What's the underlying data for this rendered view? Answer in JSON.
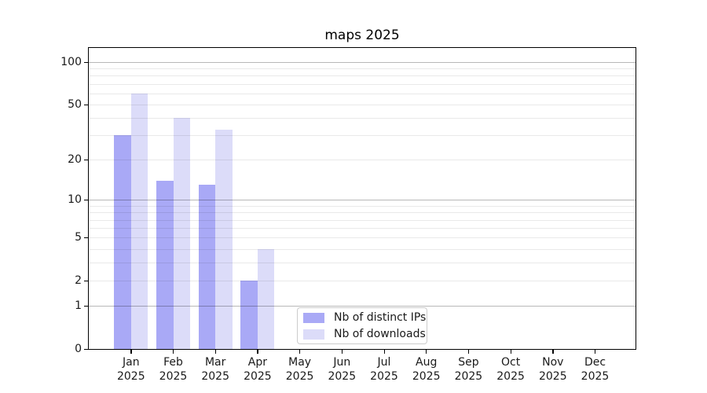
{
  "title": "maps 2025",
  "chart_data": {
    "type": "bar",
    "title": "maps 2025",
    "categories": [
      "Jan 2025",
      "Feb 2025",
      "Mar 2025",
      "Apr 2025",
      "May 2025",
      "Jun 2025",
      "Jul 2025",
      "Aug 2025",
      "Sep 2025",
      "Oct 2025",
      "Nov 2025",
      "Dec 2025"
    ],
    "months": [
      "Jan",
      "Feb",
      "Mar",
      "Apr",
      "May",
      "Jun",
      "Jul",
      "Aug",
      "Sep",
      "Oct",
      "Nov",
      "Dec"
    ],
    "year_label": "2025",
    "series": [
      {
        "name": "Nb of distinct IPs",
        "color": "#a9a9f6",
        "values": [
          30,
          14,
          13,
          2,
          0,
          0,
          0,
          0,
          0,
          0,
          0,
          0
        ]
      },
      {
        "name": "Nb of downloads",
        "color": "#dcdcf9",
        "values": [
          60,
          40,
          33,
          4,
          0,
          0,
          0,
          0,
          0,
          0,
          0,
          0
        ]
      }
    ],
    "y_axis": {
      "scale": "log10(1+y)",
      "tick_values": [
        0,
        1,
        2,
        5,
        10,
        20,
        50,
        100
      ],
      "tick_labels": [
        "0",
        "1",
        "2",
        "5",
        "10",
        "20",
        "50",
        "100"
      ],
      "major_gridlines": [
        1,
        10,
        100
      ],
      "minor_gridlines": [
        2,
        3,
        4,
        5,
        6,
        7,
        8,
        9,
        20,
        30,
        40,
        50,
        60,
        70,
        80,
        90
      ],
      "ylim": [
        0,
        127
      ]
    },
    "x_axis": {
      "tick_labels_two_line": true
    },
    "legend": {
      "position": "lower center",
      "entries": [
        "Nb of distinct IPs",
        "Nb of downloads"
      ]
    },
    "grid": true
  },
  "colors": {
    "bar_distinct_ips": "#a9a9f6",
    "bar_downloads": "#dcdcf9",
    "grid_major": "rgba(0,0,0,0.28)",
    "grid_minor": "rgba(0,0,0,0.085)",
    "spine": "#000000",
    "legend_border": "#cccccc",
    "text": "#1a1a1a"
  }
}
